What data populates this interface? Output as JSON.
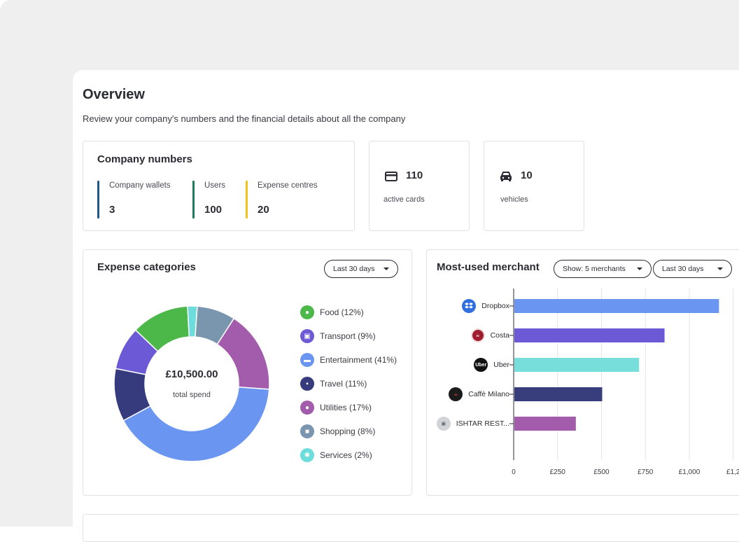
{
  "overview": {
    "title": "Overview",
    "subtitle": "Review your company's numbers and the financial details about all the company"
  },
  "company_numbers": {
    "title": "Company numbers",
    "stats": [
      {
        "label": "Company wallets",
        "value": "3",
        "color": "#1e5a84"
      },
      {
        "label": "Users",
        "value": "100",
        "color": "#1f7a62"
      },
      {
        "label": "Expense centres",
        "value": "20",
        "color": "#f2c21c"
      }
    ]
  },
  "cards_summary": {
    "value": "110",
    "label": "active cards",
    "icon": "credit-card-icon"
  },
  "vehicles_summary": {
    "value": "10",
    "label": "vehicles",
    "icon": "car-icon"
  },
  "expense_categories": {
    "title": "Expense categories",
    "period": "Last 30 days",
    "total": "£10,500.00",
    "total_label": "total spend",
    "items": [
      {
        "label": "Food (12%)",
        "color": "#4cb84a",
        "icon": "apple-icon"
      },
      {
        "label": "Transport (9%)",
        "color": "#6b59d6",
        "icon": "bus-icon"
      },
      {
        "label": "Entertainment (41%)",
        "color": "#6a96f2",
        "icon": "ticket-icon"
      },
      {
        "label": "Travel (11%)",
        "color": "#353b7c",
        "icon": "suitcase-icon"
      },
      {
        "label": "Utilities (17%)",
        "color": "#a35bab",
        "icon": "bulb-icon"
      },
      {
        "label": "Shopping (8%)",
        "color": "#7a95ae",
        "icon": "bag-icon"
      },
      {
        "label": "Services (2%)",
        "color": "#6ddcdc",
        "icon": "gear-icon"
      }
    ]
  },
  "most_used_merchant": {
    "title": "Most-used merchant",
    "show_filter": "Show: 5 merchants",
    "period": "Last 30 days"
  },
  "chart_data": [
    {
      "type": "pie",
      "title": "Expense categories",
      "categories": [
        "Food",
        "Transport",
        "Entertainment",
        "Travel",
        "Utilities",
        "Shopping",
        "Services"
      ],
      "values": [
        12,
        9,
        41,
        11,
        17,
        8,
        2
      ],
      "colors": [
        "#4cb84a",
        "#6b59d6",
        "#6a96f2",
        "#353b7c",
        "#a35bab",
        "#7a95ae",
        "#6ddcdc"
      ],
      "center_text": "£10,500.00",
      "center_subtext": "total spend"
    },
    {
      "type": "bar",
      "orientation": "horizontal",
      "title": "Most-used merchant",
      "categories": [
        "Dropbox",
        "Costa",
        "Uber",
        "Caffè Milano",
        "ISHTAR REST..."
      ],
      "values": [
        1165,
        855,
        710,
        500,
        350
      ],
      "colors": [
        "#6a96f2",
        "#6b59d6",
        "#78dedc",
        "#383d7c",
        "#a35bab"
      ],
      "xticks": [
        "0",
        "£250",
        "£500",
        "£750",
        "£1,000",
        "£1,2"
      ],
      "xlim": [
        0,
        1250
      ],
      "grid": true
    }
  ]
}
